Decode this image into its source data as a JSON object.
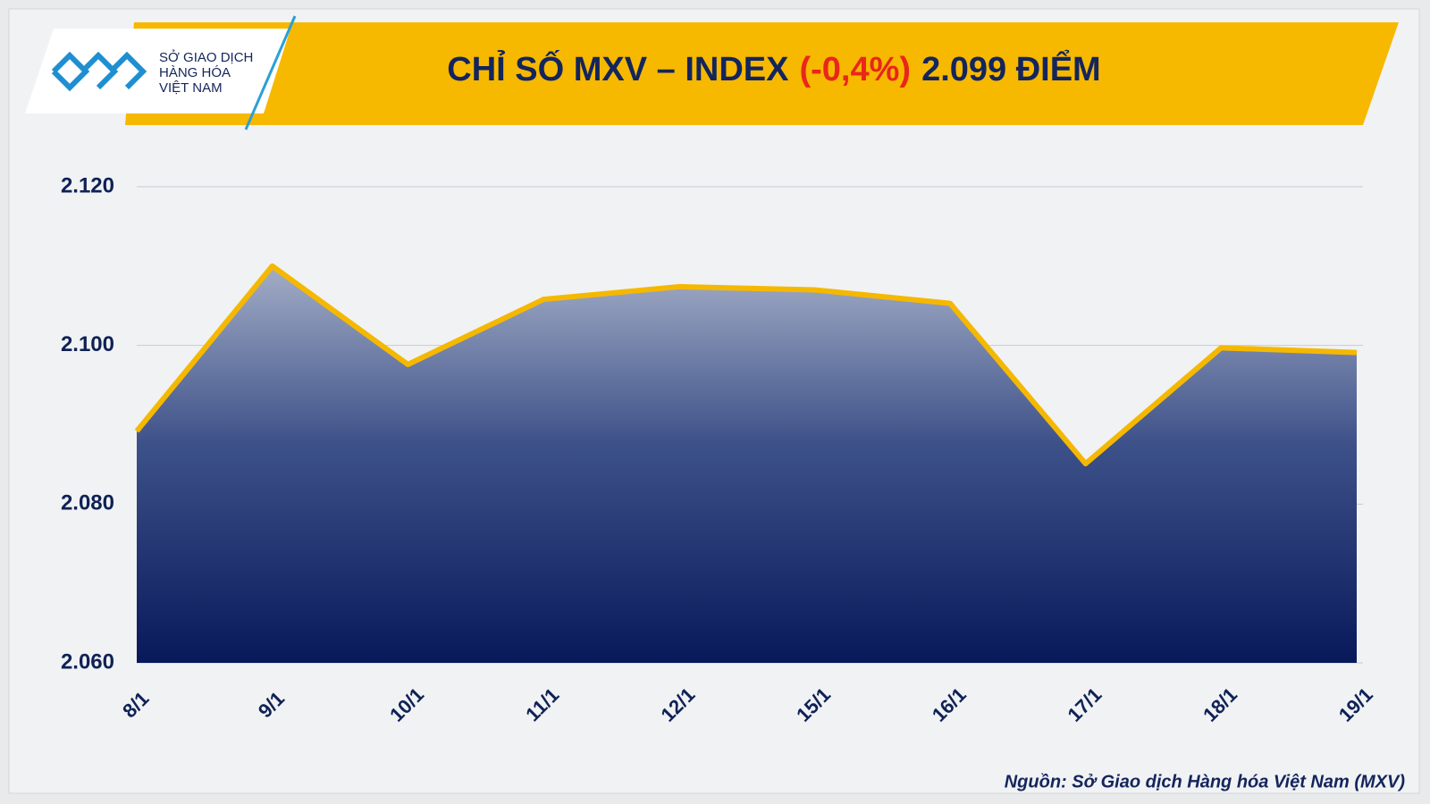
{
  "chart_data": {
    "type": "area",
    "title": [
      "CHỈ SỐ MXV – INDEX",
      "(-0,4%)",
      "2.099 ĐIỂM"
    ],
    "title_colors": [
      "#13255c",
      "#e8261b",
      "#13255c"
    ],
    "logo_text": [
      "SỞ GIAO DỊCH",
      "HÀNG HÓA",
      "VIỆT NAM"
    ],
    "source": "Nguồn: Sở Giao dịch Hàng hóa Việt Nam (MXV)",
    "categories": [
      "8/1",
      "9/1",
      "10/1",
      "11/1",
      "12/1",
      "15/1",
      "16/1",
      "17/1",
      "18/1",
      "19/1"
    ],
    "series": [
      {
        "color": "#f5b800",
        "values": [
          2089.2,
          2110.0,
          2097.6,
          2105.8,
          2107.4,
          2107.0,
          2105.3,
          2085.1,
          2099.7,
          2099.1
        ]
      }
    ],
    "ylim": [
      2060,
      2120
    ],
    "yticks": [
      {
        "value": 2060,
        "label": "2.060"
      },
      {
        "value": 2080,
        "label": "2.080"
      },
      {
        "value": 2100,
        "label": "2.100"
      },
      {
        "value": 2120,
        "label": "2.120"
      }
    ],
    "grid": true
  }
}
